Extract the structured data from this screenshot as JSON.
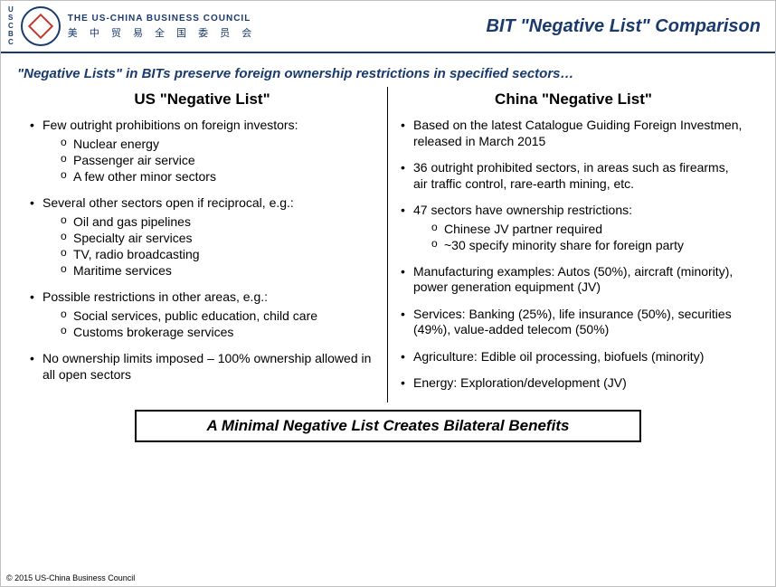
{
  "colors": {
    "brand_blue": "#1a3a6e",
    "brand_red": "#c0392b",
    "text": "#000000",
    "background": "#ffffff",
    "page_border": "#c0c0c0"
  },
  "typography": {
    "font_family": "Arial, Helvetica, sans-serif",
    "title_fontsize": 20,
    "intro_fontsize": 15,
    "col_title_fontsize": 17,
    "body_fontsize": 14,
    "callout_fontsize": 17,
    "copyright_fontsize": 9
  },
  "logo": {
    "vertical_letters": [
      "U",
      "S",
      "C",
      "B",
      "C"
    ],
    "org_en": "THE US-CHINA BUSINESS COUNCIL",
    "org_cn": "美 中 贸 易 全 国 委 员 会"
  },
  "slide_title": "BIT \"Negative List\" Comparison",
  "intro": "\"Negative Lists\" in BITs preserve foreign ownership restrictions in specified sectors…",
  "columns": {
    "left": {
      "title": "US \"Negative List\"",
      "items": [
        {
          "text": "Few outright prohibitions on foreign investors:",
          "sub": [
            "Nuclear energy",
            "Passenger air service",
            "A few other minor sectors"
          ]
        },
        {
          "text": "Several other sectors open if reciprocal, e.g.:",
          "sub": [
            "Oil and gas pipelines",
            "Specialty air services",
            "TV, radio broadcasting",
            "Maritime services"
          ]
        },
        {
          "text": "Possible restrictions in other areas, e.g.:",
          "sub": [
            "Social services, public education, child care",
            "Customs brokerage services"
          ]
        },
        {
          "text": "No ownership limits imposed – 100% ownership allowed in all open sectors"
        }
      ]
    },
    "right": {
      "title": "China \"Negative List\"",
      "items": [
        {
          "text": "Based on the latest Catalogue Guiding Foreign Investmen, released in March 2015"
        },
        {
          "text": "36 outright prohibited sectors, in areas such as firearms, air traffic control, rare-earth mining, etc."
        },
        {
          "text": "47 sectors have ownership restrictions:",
          "sub": [
            "Chinese JV partner required",
            "~30 specify minority share for foreign party"
          ]
        },
        {
          "text": "Manufacturing examples:  Autos (50%), aircraft (minority), power generation equipment (JV)"
        },
        {
          "text": "Services:  Banking (25%), life insurance (50%), securities (49%), value-added telecom (50%)"
        },
        {
          "text": "Agriculture:  Edible oil processing, biofuels (minority)"
        },
        {
          "text": "Energy: Exploration/development (JV)"
        }
      ]
    }
  },
  "callout": "A Minimal Negative List Creates Bilateral Benefits",
  "copyright": "© 2015 US-China Business Council"
}
